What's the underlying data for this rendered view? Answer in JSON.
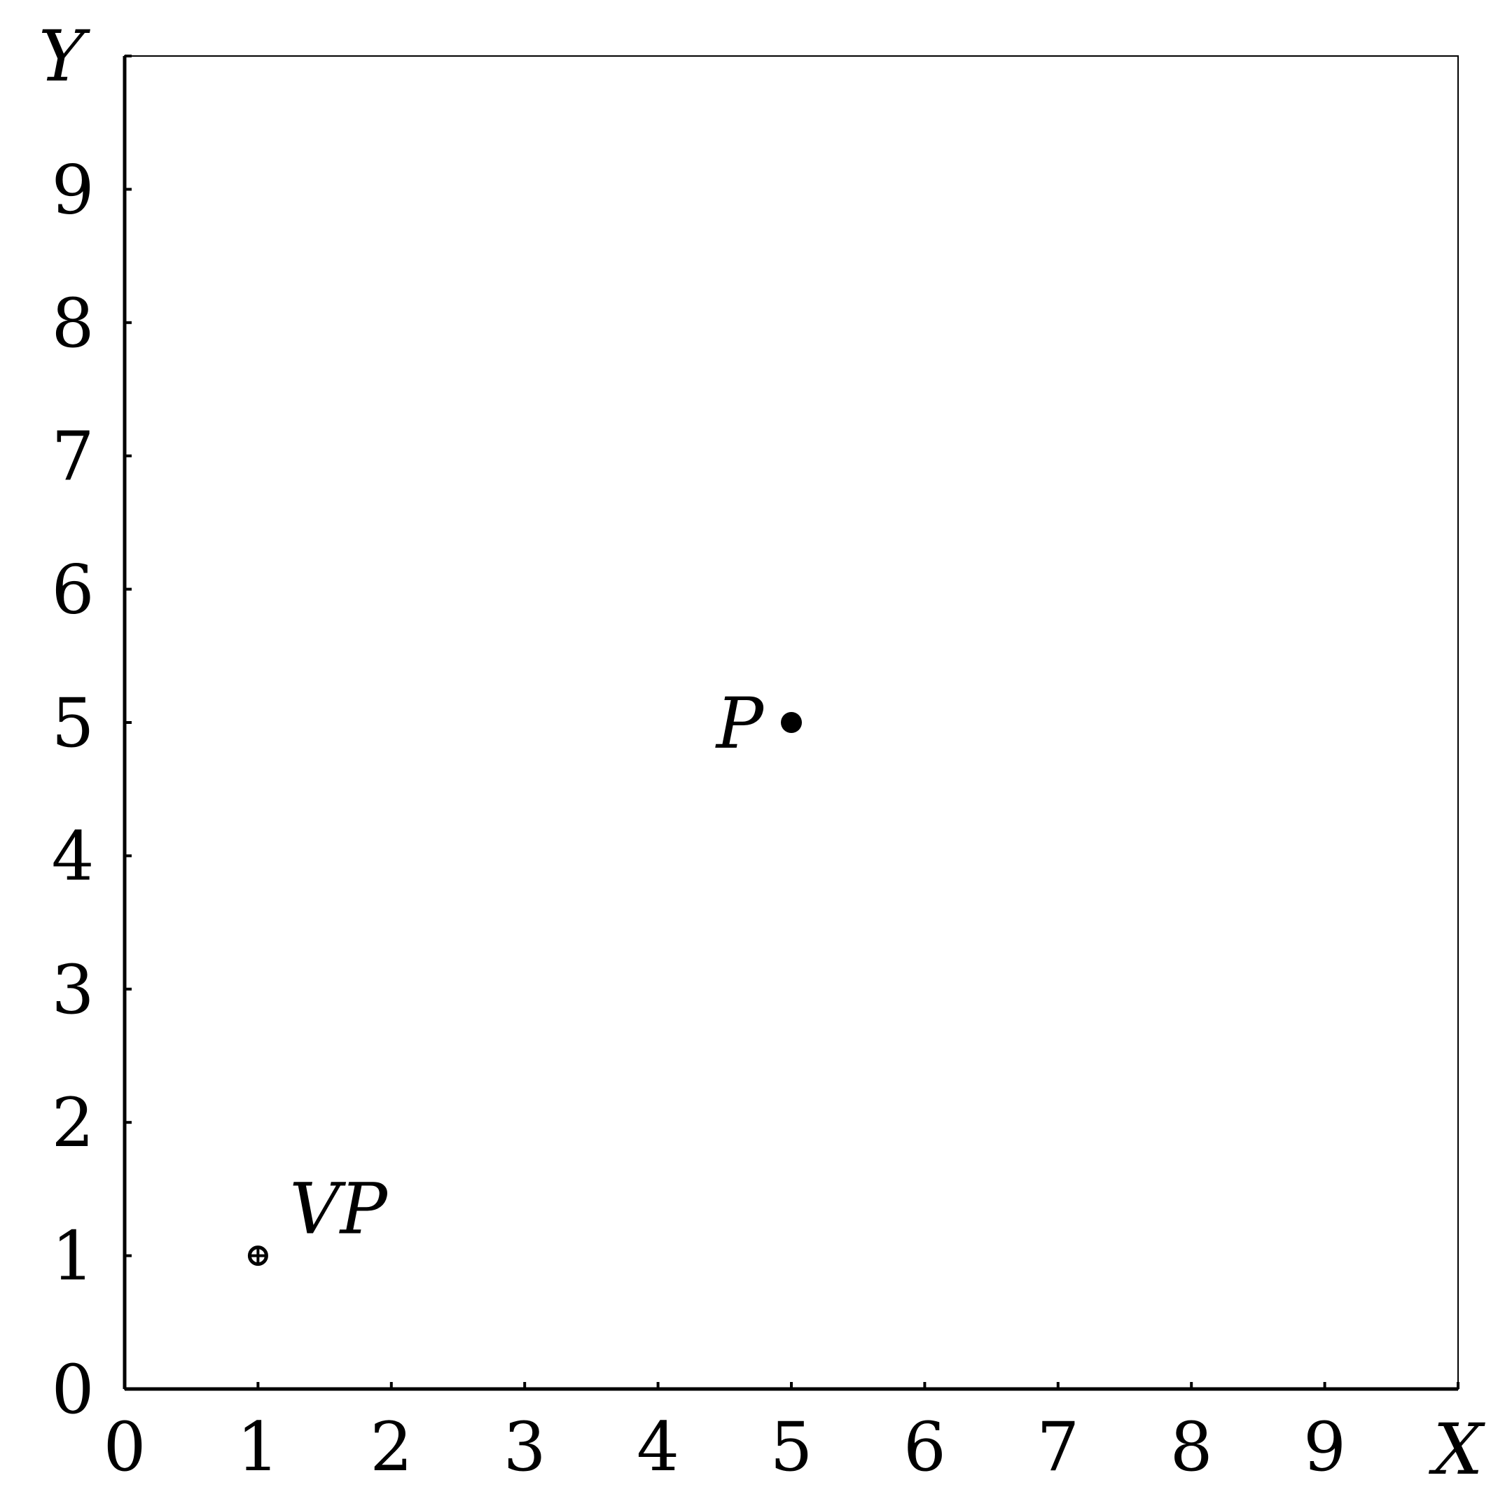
{
  "chart_data": {
    "type": "scatter",
    "title": "",
    "xlabel": "X",
    "ylabel": "Y",
    "xlim": [
      0,
      10
    ],
    "ylim": [
      0,
      10
    ],
    "x_ticks": [
      "0",
      "1",
      "2",
      "3",
      "4",
      "5",
      "6",
      "7",
      "8",
      "9"
    ],
    "y_ticks": [
      "0",
      "1",
      "2",
      "3",
      "4",
      "5",
      "6",
      "7",
      "8",
      "9"
    ],
    "grid": false,
    "points": [
      {
        "label": "P",
        "x": 5,
        "y": 5,
        "marker": "filled-circle",
        "label_side": "left"
      },
      {
        "label": "VP",
        "x": 1,
        "y": 1,
        "marker": "crosshair-circle",
        "label_side": "upper-right"
      }
    ],
    "colors": {
      "ink": "#000000",
      "background": "#ffffff"
    }
  }
}
